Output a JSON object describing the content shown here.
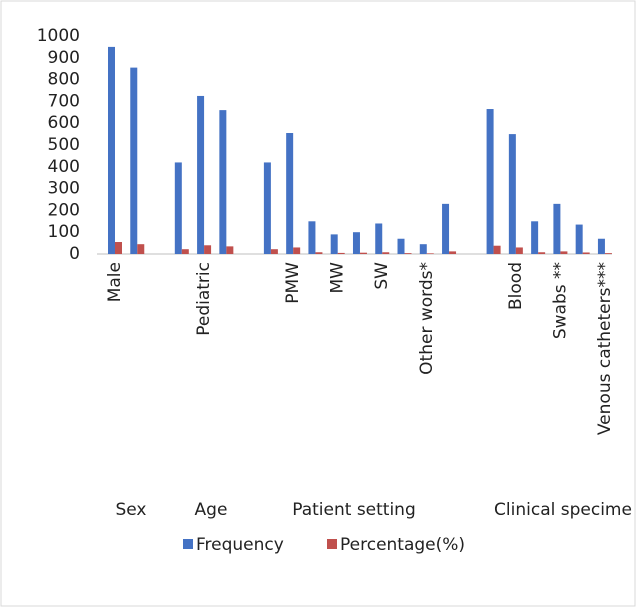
{
  "chart_data": {
    "type": "bar",
    "categories": [
      "Male",
      null,
      null,
      null,
      "Pediatric",
      null,
      null,
      null,
      "PMW",
      null,
      "MW",
      null,
      "SW",
      null,
      "Other words*",
      null,
      null,
      null,
      "Blood",
      null,
      "Swabs **",
      null,
      "Venous catheters***"
    ],
    "group_labels": [
      "Sex",
      "Age",
      "Patient setting",
      "Clinical specime"
    ],
    "series": [
      {
        "name": "Frequency",
        "color": "#4472c4",
        "values": [
          950,
          855,
          null,
          420,
          725,
          660,
          null,
          420,
          555,
          150,
          90,
          100,
          140,
          70,
          45,
          230,
          null,
          665,
          550,
          150,
          230,
          135,
          70
        ]
      },
      {
        "name": "Percentage(%)",
        "color": "#c0504d",
        "values": [
          55,
          45,
          null,
          22,
          40,
          35,
          null,
          22,
          30,
          8,
          5,
          6,
          8,
          4,
          3,
          12,
          null,
          38,
          30,
          8,
          12,
          7,
          4
        ]
      }
    ],
    "ylim": [
      0,
      1000
    ],
    "yticks": [
      0,
      100,
      200,
      300,
      400,
      500,
      600,
      700,
      800,
      900,
      1000
    ],
    "grid": false,
    "legend": "bottom"
  }
}
